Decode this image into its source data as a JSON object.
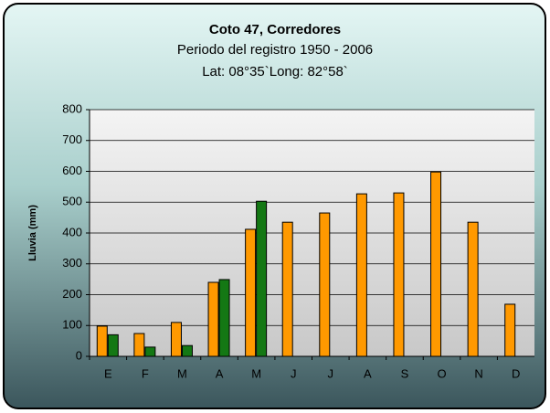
{
  "chart_data": {
    "type": "bar",
    "title": "Coto 47, Corredores",
    "subtitle": "Periodo del registro 1950 - 2006",
    "subtitle2": "Lat: 08°35`Long: 82°58`",
    "y_label": "Lluvia (mm)",
    "categories": [
      "E",
      "F",
      "M",
      "A",
      "M",
      "J",
      "J",
      "A",
      "S",
      "O",
      "N",
      "D"
    ],
    "series": [
      {
        "color": "#ff9900",
        "values": [
          98,
          74,
          110,
          240,
          412,
          435,
          465,
          527,
          530,
          598,
          435,
          169
        ]
      },
      {
        "color": "#147814",
        "values": [
          70,
          30,
          35,
          249,
          503,
          null,
          null,
          null,
          null,
          null,
          null,
          null
        ]
      }
    ],
    "ylim": [
      0,
      800
    ],
    "yticks": [
      0,
      100,
      200,
      300,
      400,
      500,
      600,
      700,
      800
    ],
    "grid": true
  }
}
